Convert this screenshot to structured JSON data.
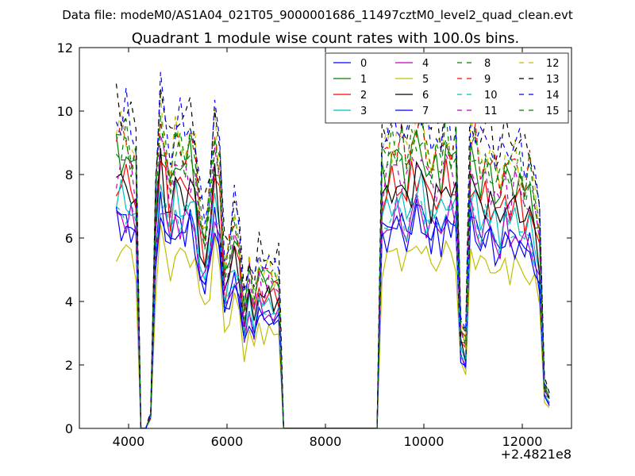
{
  "chart_data": {
    "type": "line",
    "suptitle": "Data file: modeM0/AS1A04_021T05_9000001686_11497cztM0_level2_quad_clean.evt",
    "title": "Quadrant 1 module wise count rates with 100.0s bins.",
    "xlabel": "",
    "ylabel": "",
    "x_offset_label": "+2.4821e8",
    "xlim": [
      3000,
      13000
    ],
    "ylim": [
      0,
      12
    ],
    "xticks": [
      4000,
      6000,
      8000,
      10000,
      12000
    ],
    "yticks": [
      0,
      2,
      4,
      6,
      8,
      10,
      12
    ],
    "legend_location": "upper right",
    "legend_columns": 4,
    "segments": [
      {
        "x": [
          3750,
          3850,
          3950,
          4050,
          4150,
          4250,
          4350,
          4450,
          4550,
          4650,
          4750,
          4850,
          4950,
          5050,
          5150,
          5250,
          5350,
          5450,
          5550,
          5650,
          5750,
          5850,
          5950,
          6050,
          6150,
          6250,
          6350,
          6450,
          6550,
          6650,
          6750,
          6850,
          6950,
          7050,
          7150
        ]
      },
      {
        "x": [
          9050,
          9150,
          9250,
          9350,
          9450,
          9550,
          9650,
          9750,
          9850,
          9950,
          10050,
          10150,
          10250,
          10350,
          10450,
          10550,
          10650,
          10750,
          10850,
          10950,
          11050,
          11150,
          11250,
          11350,
          11450,
          11550,
          11650,
          11750,
          11850,
          11950,
          12050,
          12150,
          12250,
          12350,
          12450,
          12550
        ]
      }
    ],
    "gap": {
      "x_start": 7150,
      "x_end": 9050,
      "value": 0
    },
    "series": [
      {
        "name": "0",
        "color": "#0000ff",
        "dash": "solid",
        "base": 6.6,
        "amp": 1.0
      },
      {
        "name": "1",
        "color": "#008000",
        "dash": "solid",
        "base": 8.6,
        "amp": 1.0
      },
      {
        "name": "2",
        "color": "#ff0000",
        "dash": "solid",
        "base": 7.8,
        "amp": 1.0
      },
      {
        "name": "3",
        "color": "#00bfbf",
        "dash": "solid",
        "base": 7.2,
        "amp": 1.0
      },
      {
        "name": "4",
        "color": "#bf00bf",
        "dash": "solid",
        "base": 6.7,
        "amp": 0.95
      },
      {
        "name": "5",
        "color": "#bfbf00",
        "dash": "solid",
        "base": 5.6,
        "amp": 0.85
      },
      {
        "name": "6",
        "color": "#000000",
        "dash": "solid",
        "base": 7.7,
        "amp": 1.0
      },
      {
        "name": "7",
        "color": "#0000ff",
        "dash": "solid",
        "base": 6.4,
        "amp": 0.95
      },
      {
        "name": "8",
        "color": "#008000",
        "dash": "dashed",
        "base": 8.9,
        "amp": 1.0
      },
      {
        "name": "9",
        "color": "#ff0000",
        "dash": "dashed",
        "base": 9.1,
        "amp": 1.0
      },
      {
        "name": "10",
        "color": "#00bfbf",
        "dash": "dashed",
        "base": 6.9,
        "amp": 0.95
      },
      {
        "name": "11",
        "color": "#bf00bf",
        "dash": "dashed",
        "base": 8.3,
        "amp": 1.0
      },
      {
        "name": "12",
        "color": "#bfbf00",
        "dash": "dashed",
        "base": 9.3,
        "amp": 1.0
      },
      {
        "name": "13",
        "color": "#000000",
        "dash": "dashed",
        "base": 10.1,
        "amp": 1.05
      },
      {
        "name": "14",
        "color": "#0000ff",
        "dash": "dashed",
        "base": 9.8,
        "amp": 1.05
      },
      {
        "name": "15",
        "color": "#008000",
        "dash": "dashed",
        "base": 9.0,
        "amp": 1.0
      }
    ],
    "profile": {
      "description": "shared relative count-rate envelope (multiplied by each series base); gap between segments is 0",
      "seg1": [
        1.0,
        1.0,
        1.0,
        0.97,
        0.92,
        0.0,
        0.0,
        0.05,
        0.8,
        1.08,
        0.98,
        0.86,
        1.0,
        0.97,
        0.96,
        0.99,
        0.93,
        0.74,
        0.68,
        0.8,
        1.02,
        0.9,
        0.55,
        0.62,
        0.72,
        0.65,
        0.4,
        0.55,
        0.45,
        0.58,
        0.52,
        0.55,
        0.52,
        0.53,
        0.0
      ],
      "seg2": [
        0.0,
        0.92,
        0.95,
        0.98,
        1.0,
        0.97,
        0.92,
        1.0,
        1.05,
        1.03,
        0.96,
        0.92,
        0.95,
        0.93,
        1.02,
        0.98,
        0.97,
        0.35,
        0.3,
        1.02,
        0.96,
        0.9,
        0.95,
        0.92,
        0.88,
        0.85,
        0.95,
        0.88,
        0.92,
        0.9,
        0.85,
        0.88,
        0.8,
        0.7,
        0.15,
        0.12
      ]
    }
  }
}
